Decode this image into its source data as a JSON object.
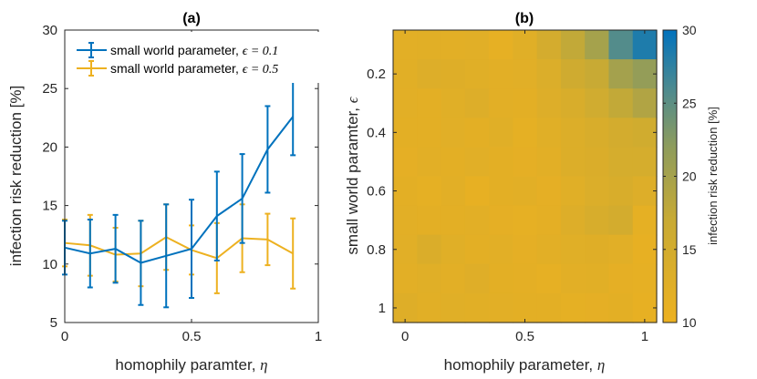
{
  "chart_data": [
    {
      "panel": "(a)",
      "type": "line",
      "title": "(a)",
      "xlabel": "homophily paramter,",
      "xlabel_symbol": "η",
      "ylabel": "infection risk reduction [%]",
      "xlim": [
        0,
        1
      ],
      "ylim": [
        5,
        30
      ],
      "xticks": [
        0,
        0.5,
        1
      ],
      "xtick_labels": [
        "0",
        "0.5",
        "1"
      ],
      "yticks": [
        5,
        10,
        15,
        20,
        25,
        30
      ],
      "ytick_labels": [
        "5",
        "10",
        "15",
        "20",
        "25",
        "30"
      ],
      "legend_position": "top-left",
      "series": [
        {
          "name": "small world parameter,",
          "legend_eps": "ϵ = 0.1",
          "color": "#0072BD",
          "x": [
            0,
            0.1,
            0.2,
            0.3,
            0.4,
            0.5,
            0.6,
            0.7,
            0.8,
            0.9
          ],
          "y": [
            11.4,
            10.9,
            11.3,
            10.1,
            10.7,
            11.3,
            14.1,
            15.6,
            19.8,
            22.6
          ],
          "err": [
            2.3,
            2.9,
            2.9,
            3.6,
            4.4,
            4.2,
            3.8,
            3.8,
            3.7,
            3.3
          ]
        },
        {
          "name": "small world parameter,",
          "legend_eps": "ϵ = 0.5",
          "color": "#EDB120",
          "x": [
            0,
            0.1,
            0.2,
            0.3,
            0.4,
            0.5,
            0.6,
            0.7,
            0.8,
            0.9
          ],
          "y": [
            11.8,
            11.6,
            10.8,
            10.9,
            12.3,
            11.2,
            10.5,
            12.2,
            12.1,
            10.9
          ],
          "err": [
            2.0,
            2.6,
            2.3,
            2.8,
            2.8,
            2.1,
            3.0,
            2.9,
            2.2,
            3.0
          ]
        }
      ]
    },
    {
      "panel": "(b)",
      "type": "heatmap",
      "title": "(b)",
      "xlabel": "homophily parameter,",
      "xlabel_symbol": "η",
      "ylabel": "small world paramter,",
      "ylabel_symbol": "ϵ",
      "x_centers": [
        0,
        0.1,
        0.2,
        0.3,
        0.4,
        0.5,
        0.6,
        0.7,
        0.8,
        0.9,
        1.0
      ],
      "y_centers": [
        0.1,
        0.2,
        0.3,
        0.4,
        0.5,
        0.6,
        0.7,
        0.8,
        0.9,
        1.0
      ],
      "xlim": [
        -0.05,
        1.05
      ],
      "ylim": [
        0.05,
        1.05
      ],
      "xticks": [
        0,
        0.5,
        1
      ],
      "xtick_labels": [
        "0",
        "0.5",
        "1"
      ],
      "yticks": [
        0.2,
        0.4,
        0.6,
        0.8,
        1
      ],
      "ytick_labels": [
        "0.2",
        "0.4",
        "0.6",
        "0.8",
        "1"
      ],
      "y_direction": "reversed",
      "colorbar": {
        "label": "infection risk reduction [%]",
        "range": [
          10,
          30
        ],
        "ticks": [
          10,
          15,
          20,
          25,
          30
        ],
        "tick_labels": [
          "10",
          "15",
          "20",
          "25",
          "30"
        ]
      },
      "values": [
        [
          12.0,
          12.2,
          12.0,
          12.3,
          11.4,
          12.5,
          14.8,
          17.5,
          20.0,
          25.6,
          28.4
        ],
        [
          12.2,
          13.0,
          12.8,
          12.5,
          12.0,
          12.3,
          13.5,
          15.6,
          17.0,
          20.1,
          21.5
        ],
        [
          12.0,
          11.8,
          12.5,
          13.0,
          12.0,
          11.8,
          13.0,
          14.0,
          15.5,
          17.5,
          19.0
        ],
        [
          11.8,
          11.9,
          12.3,
          11.8,
          12.5,
          11.5,
          12.5,
          13.2,
          14.0,
          15.0,
          15.4
        ],
        [
          11.6,
          12.0,
          11.9,
          12.3,
          11.8,
          11.6,
          12.0,
          13.2,
          13.6,
          14.5,
          14.5
        ],
        [
          11.9,
          11.5,
          12.0,
          11.2,
          11.8,
          12.0,
          11.6,
          12.5,
          13.4,
          14.0,
          13.0
        ],
        [
          12.0,
          11.8,
          11.8,
          12.0,
          11.6,
          11.3,
          11.7,
          13.0,
          14.2,
          15.0,
          11.5
        ],
        [
          12.3,
          13.6,
          12.5,
          11.9,
          12.0,
          11.6,
          12.0,
          12.5,
          12.6,
          12.3,
          11.2
        ],
        [
          12.0,
          12.5,
          12.0,
          12.7,
          11.8,
          11.7,
          11.4,
          12.0,
          12.2,
          11.6,
          11.4
        ],
        [
          12.8,
          12.2,
          12.5,
          12.2,
          12.0,
          11.9,
          11.8,
          11.5,
          11.6,
          11.8,
          11.1
        ]
      ]
    }
  ]
}
